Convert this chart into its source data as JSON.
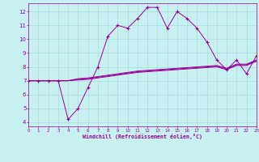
{
  "xlabel": "Windchill (Refroidissement éolien,°C)",
  "bg_color": "#c8f0f0",
  "grid_color": "#9fd8d8",
  "line_color": "#990099",
  "x_main": [
    0,
    1,
    2,
    3,
    4,
    5,
    6,
    7,
    8,
    9,
    10,
    11,
    12,
    13,
    14,
    15,
    16,
    17,
    18,
    19,
    20,
    21,
    22,
    23
  ],
  "y_main": [
    7,
    7,
    7,
    7,
    4.2,
    5.0,
    6.5,
    8.0,
    10.2,
    11.0,
    10.8,
    11.5,
    12.3,
    12.3,
    10.8,
    12.0,
    11.5,
    10.8,
    9.8,
    8.5,
    7.8,
    8.5,
    7.5,
    8.8
  ],
  "y_line1": [
    7.0,
    7.0,
    7.0,
    7.0,
    7.0,
    7.05,
    7.1,
    7.2,
    7.3,
    7.4,
    7.5,
    7.6,
    7.65,
    7.7,
    7.75,
    7.8,
    7.85,
    7.9,
    7.95,
    8.0,
    7.8,
    8.1,
    8.1,
    8.4
  ],
  "y_line2": [
    7.0,
    7.0,
    7.0,
    7.0,
    7.0,
    7.1,
    7.15,
    7.25,
    7.35,
    7.45,
    7.55,
    7.65,
    7.7,
    7.75,
    7.8,
    7.85,
    7.9,
    7.95,
    8.0,
    8.05,
    7.85,
    8.15,
    8.15,
    8.45
  ],
  "y_line3": [
    7.0,
    7.0,
    7.0,
    7.0,
    7.0,
    7.15,
    7.2,
    7.3,
    7.4,
    7.5,
    7.6,
    7.7,
    7.75,
    7.8,
    7.85,
    7.9,
    7.95,
    8.0,
    8.05,
    8.1,
    7.9,
    8.2,
    8.2,
    8.5
  ],
  "xlim": [
    0,
    23
  ],
  "ylim": [
    3.7,
    12.6
  ],
  "yticks": [
    4,
    5,
    6,
    7,
    8,
    9,
    10,
    11,
    12
  ],
  "xticks": [
    0,
    1,
    2,
    3,
    4,
    5,
    6,
    7,
    8,
    9,
    10,
    11,
    12,
    13,
    14,
    15,
    16,
    17,
    18,
    19,
    20,
    21,
    22,
    23
  ]
}
